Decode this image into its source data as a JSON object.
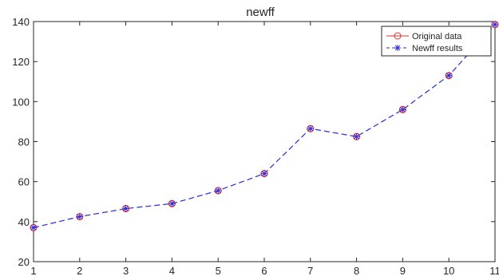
{
  "chart_data": {
    "type": "line",
    "title": "newff",
    "xlabel": "",
    "ylabel": "",
    "x": [
      1,
      2,
      3,
      4,
      5,
      6,
      7,
      8,
      9,
      10,
      11
    ],
    "xlim": [
      1,
      11
    ],
    "ylim": [
      20,
      140
    ],
    "xticks": [
      1,
      2,
      3,
      4,
      5,
      6,
      7,
      8,
      9,
      10,
      11
    ],
    "yticks": [
      20,
      40,
      60,
      80,
      100,
      120,
      140
    ],
    "grid": false,
    "legend_position": "top-right",
    "series": [
      {
        "name": "Original data",
        "values": [
          37,
          42.5,
          46.5,
          49,
          55.5,
          64,
          86.5,
          82.5,
          96,
          113,
          138.5
        ],
        "color": "#e03030",
        "marker": "circle",
        "line": "none"
      },
      {
        "name": "Newff results",
        "values": [
          37,
          42.5,
          46.5,
          49,
          55.5,
          64,
          86.5,
          82.5,
          96,
          113,
          138.5
        ],
        "color": "#2a2ad8",
        "marker": "asterisk",
        "line": "dashed"
      }
    ]
  }
}
